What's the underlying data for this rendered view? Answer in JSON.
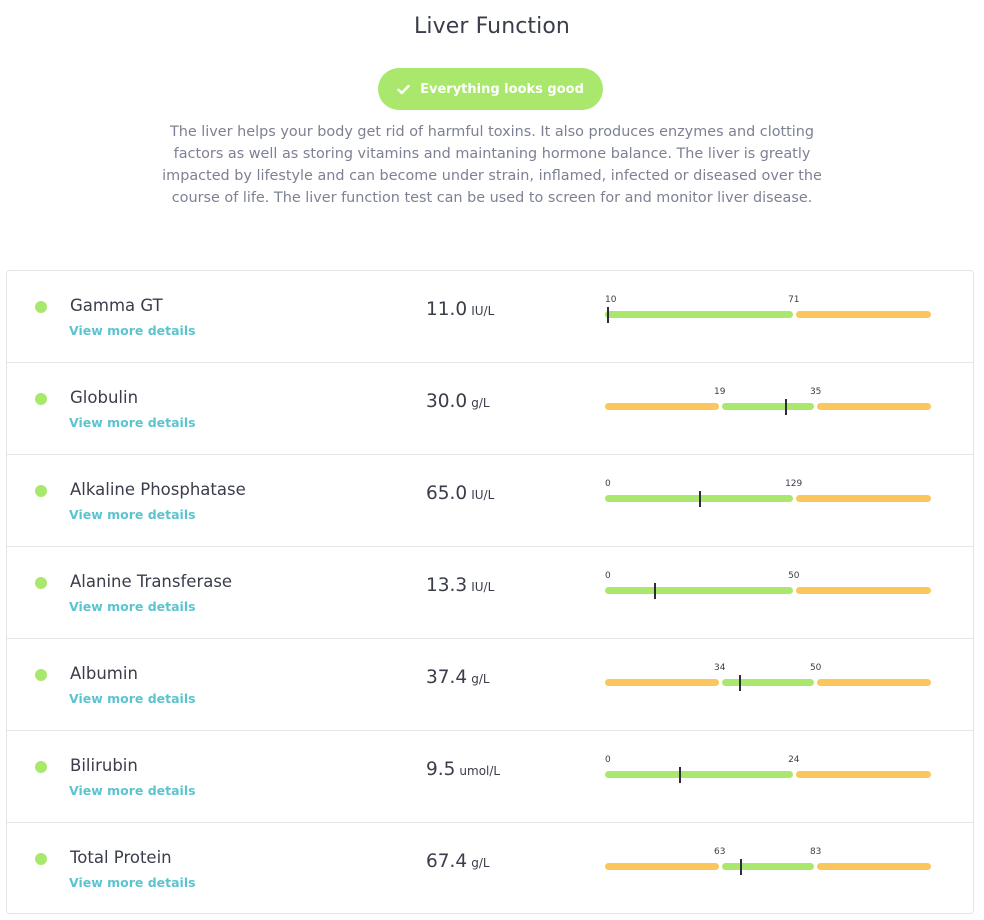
{
  "page": {
    "title": "Liver Function",
    "status": "Everything looks good",
    "status_icon": "check-icon",
    "description": "The liver helps your body get rid of harmful toxins. It also produces enzymes and clotting factors as well as storing vitamins and maintaning hormone balance. The liver is greatly impacted by lifestyle and can become under strain, inflamed, infected or diseased over the course of life. The liver function test can be used to screen for and monitor liver disease."
  },
  "colors": {
    "in_range": "#a9e86c",
    "out_of_range": "#fbc65c",
    "link": "#5bc4cf",
    "marker": "#2d2f38"
  },
  "biomarkers": [
    {
      "name": "Gamma GT",
      "link_label": "View more details",
      "value": "11.0",
      "unit": "IU/L",
      "value_num": 11.0,
      "range_low": 10,
      "range_high": 71,
      "range_low_label": "10",
      "range_high_label": "71",
      "has_lower_zone": false
    },
    {
      "name": "Globulin",
      "link_label": "View more details",
      "value": "30.0",
      "unit": "g/L",
      "value_num": 30.0,
      "range_low": 19,
      "range_high": 35,
      "range_low_label": "19",
      "range_high_label": "35",
      "has_lower_zone": true
    },
    {
      "name": "Alkaline Phosphatase",
      "link_label": "View more details",
      "value": "65.0",
      "unit": "IU/L",
      "value_num": 65.0,
      "range_low": 0,
      "range_high": 129,
      "range_low_label": "0",
      "range_high_label": "129",
      "has_lower_zone": false
    },
    {
      "name": "Alanine Transferase",
      "link_label": "View more details",
      "value": "13.3",
      "unit": "IU/L",
      "value_num": 13.3,
      "range_low": 0,
      "range_high": 50,
      "range_low_label": "0",
      "range_high_label": "50",
      "has_lower_zone": false
    },
    {
      "name": "Albumin",
      "link_label": "View more details",
      "value": "37.4",
      "unit": "g/L",
      "value_num": 37.4,
      "range_low": 34,
      "range_high": 50,
      "range_low_label": "34",
      "range_high_label": "50",
      "has_lower_zone": true
    },
    {
      "name": "Bilirubin",
      "link_label": "View more details",
      "value": "9.5",
      "unit": "umol/L",
      "value_num": 9.5,
      "range_low": 0,
      "range_high": 24,
      "range_low_label": "0",
      "range_high_label": "24",
      "has_lower_zone": false
    },
    {
      "name": "Total Protein",
      "link_label": "View more details",
      "value": "67.4",
      "unit": "g/L",
      "value_num": 67.4,
      "range_low": 63,
      "range_high": 83,
      "range_low_label": "63",
      "range_high_label": "83",
      "has_lower_zone": true
    }
  ]
}
